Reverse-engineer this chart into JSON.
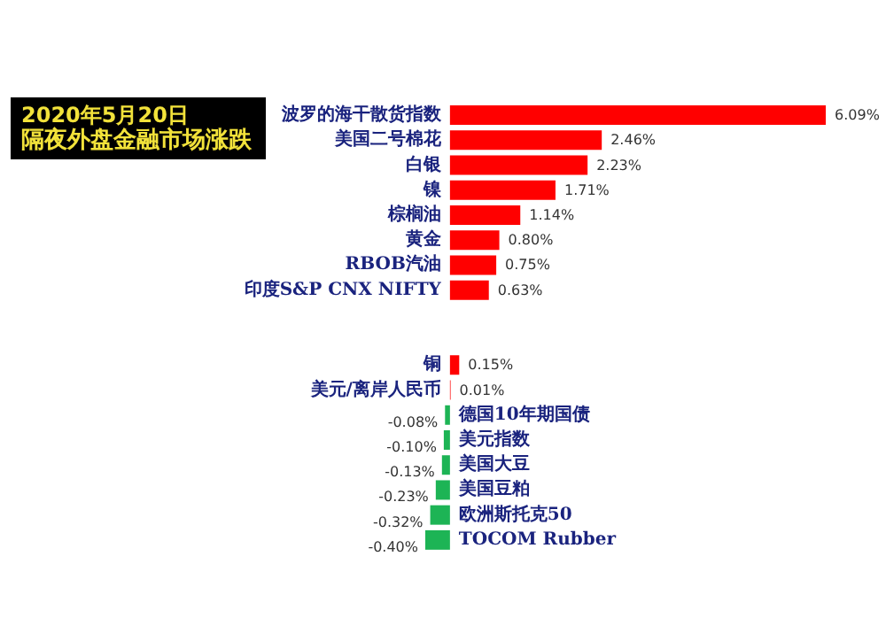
{
  "chart_data": {
    "type": "bar",
    "orientation": "horizontal",
    "title": "2020年5月20日",
    "subtitle": "隔夜外盘金融市场涨跌",
    "categories": [
      "波罗的海干散货指数",
      "美国二号棉花",
      "白银",
      "镍",
      "棕榈油",
      "黄金",
      "RBOB汽油",
      "印度S&P CNX NIFTY",
      null,
      null,
      "铜",
      "美元/离岸人民币",
      "德国10年期国债",
      "美元指数",
      "美国大豆",
      "美国豆粕",
      "欧洲斯托克50",
      "TOCOM Rubber"
    ],
    "values": [
      6.09,
      2.46,
      2.23,
      1.71,
      1.14,
      0.8,
      0.75,
      0.63,
      null,
      null,
      0.15,
      0.01,
      -0.08,
      -0.1,
      -0.13,
      -0.23,
      -0.32,
      -0.4
    ],
    "value_labels": [
      "6.09%",
      "2.46%",
      "2.23%",
      "1.71%",
      "1.14%",
      "0.80%",
      "0.75%",
      "0.63%",
      null,
      null,
      "0.15%",
      "0.01%",
      "-0.08%",
      "-0.10%",
      "-0.13%",
      "-0.23%",
      "-0.32%",
      "-0.40%"
    ],
    "colors": [
      "#ff0000",
      "#ff0000",
      "#ff0000",
      "#ff0000",
      "#ff0000",
      "#ff0000",
      "#ff0000",
      "#ff0000",
      "#ff0000",
      "#ff0000",
      "#ff0000",
      "#ff0000",
      "#1db455",
      "#1db455",
      "#1db455",
      "#1db455",
      "#1db455",
      "#1db455"
    ]
  }
}
